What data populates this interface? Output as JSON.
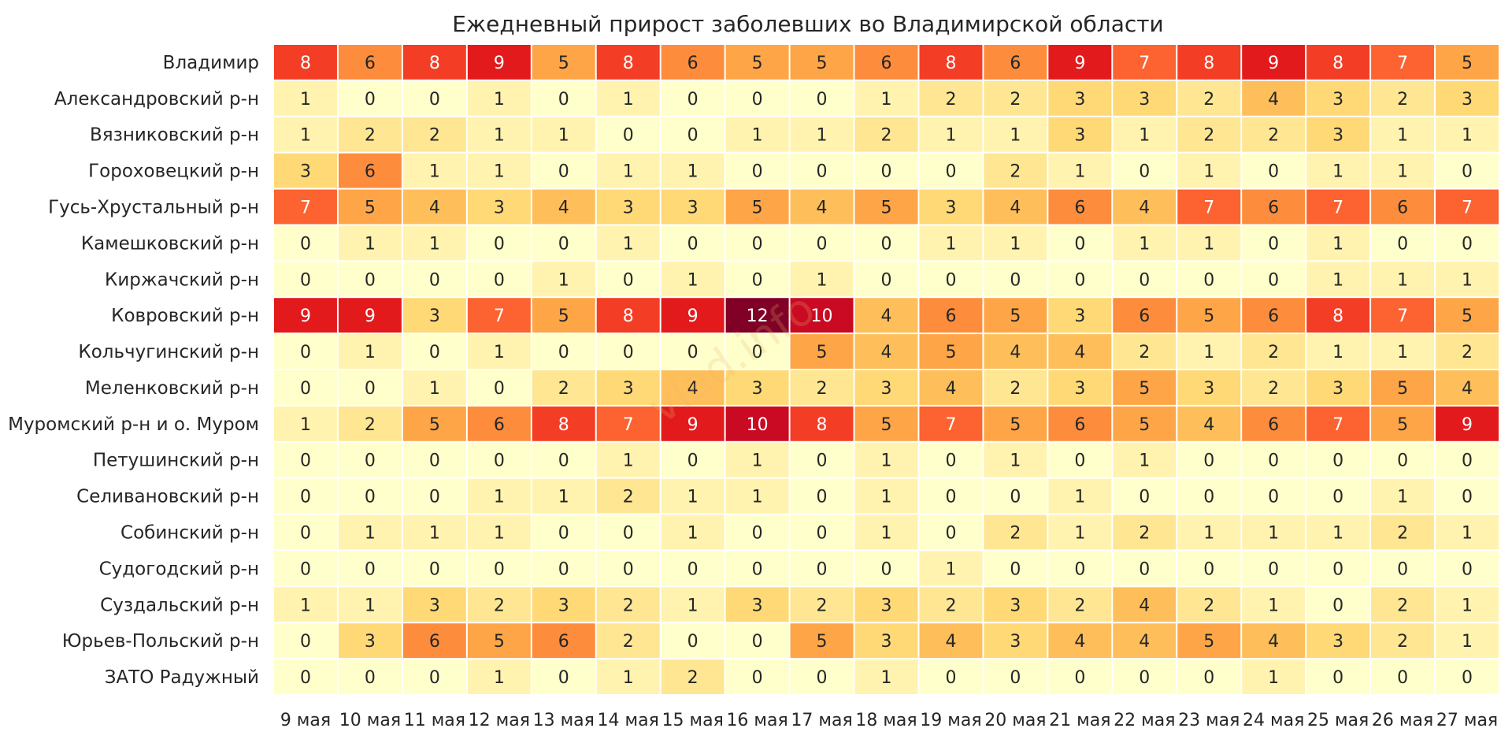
{
  "chart_data": {
    "type": "heatmap",
    "title": "Ежедневный прирост заболевших во Владимирской области",
    "watermark": "vlad.info",
    "colormap": [
      "#ffffcc",
      "#ffeda0",
      "#fed976",
      "#feb24c",
      "#fd8d3c",
      "#fc4e2a",
      "#e31a1c",
      "#bd0026",
      "#800026"
    ],
    "color_range": [
      0,
      12
    ],
    "x": [
      "9 мая",
      "10 мая",
      "11 мая",
      "12 мая",
      "13 мая",
      "14 мая",
      "15 мая",
      "16 мая",
      "17 мая",
      "18 мая",
      "19 мая",
      "20 мая",
      "21 мая",
      "22 мая",
      "23 мая",
      "24 мая",
      "25 мая",
      "26 мая",
      "27 мая"
    ],
    "y": [
      "Владимир",
      "Александровский р-н",
      "Вязниковский р-н",
      "Гороховецкий р-н",
      "Гусь-Хрустальный р-н",
      "Камешковский р-н",
      "Киржачский р-н",
      "Ковровский р-н",
      "Кольчугинский р-н",
      "Меленковский р-н",
      "Муромский р-н и о. Муром",
      "Петушинский р-н",
      "Селивановский р-н",
      "Собинский р-н",
      "Судогодский р-н",
      "Суздальский р-н",
      "Юрьев-Польский р-н",
      "ЗАТО Радужный"
    ],
    "values": [
      [
        8,
        6,
        8,
        9,
        5,
        8,
        6,
        5,
        5,
        6,
        8,
        6,
        9,
        7,
        8,
        9,
        8,
        7,
        5
      ],
      [
        1,
        0,
        0,
        1,
        0,
        1,
        0,
        0,
        0,
        1,
        2,
        2,
        3,
        3,
        2,
        4,
        3,
        2,
        3
      ],
      [
        1,
        2,
        2,
        1,
        1,
        0,
        0,
        1,
        1,
        2,
        1,
        1,
        3,
        1,
        2,
        2,
        3,
        1,
        1
      ],
      [
        3,
        6,
        1,
        1,
        0,
        1,
        1,
        0,
        0,
        0,
        0,
        2,
        1,
        0,
        1,
        0,
        1,
        1,
        0
      ],
      [
        7,
        5,
        4,
        3,
        4,
        3,
        3,
        5,
        4,
        5,
        3,
        4,
        6,
        4,
        7,
        6,
        7,
        6,
        7
      ],
      [
        0,
        1,
        1,
        0,
        0,
        1,
        0,
        0,
        0,
        0,
        1,
        1,
        0,
        1,
        1,
        0,
        1,
        0,
        0
      ],
      [
        0,
        0,
        0,
        0,
        1,
        0,
        1,
        0,
        1,
        0,
        0,
        0,
        0,
        0,
        0,
        0,
        1,
        1,
        1
      ],
      [
        9,
        9,
        3,
        7,
        5,
        8,
        9,
        12,
        10,
        4,
        6,
        5,
        3,
        6,
        5,
        6,
        8,
        7,
        5
      ],
      [
        0,
        1,
        0,
        1,
        0,
        0,
        0,
        0,
        5,
        4,
        5,
        4,
        4,
        2,
        1,
        2,
        1,
        1,
        2
      ],
      [
        0,
        0,
        1,
        0,
        2,
        3,
        4,
        3,
        2,
        3,
        4,
        2,
        3,
        5,
        3,
        2,
        3,
        5,
        4
      ],
      [
        1,
        2,
        5,
        6,
        8,
        7,
        9,
        10,
        8,
        5,
        7,
        5,
        6,
        5,
        4,
        6,
        7,
        5,
        9
      ],
      [
        0,
        0,
        0,
        0,
        0,
        1,
        0,
        1,
        0,
        1,
        0,
        1,
        0,
        1,
        0,
        0,
        0,
        0,
        0
      ],
      [
        0,
        0,
        0,
        1,
        1,
        2,
        1,
        1,
        0,
        1,
        0,
        0,
        1,
        0,
        0,
        0,
        0,
        1,
        0
      ],
      [
        0,
        1,
        1,
        1,
        0,
        0,
        1,
        0,
        0,
        1,
        0,
        2,
        1,
        2,
        1,
        1,
        1,
        2,
        1
      ],
      [
        0,
        0,
        0,
        0,
        0,
        0,
        0,
        0,
        0,
        0,
        1,
        0,
        0,
        0,
        0,
        0,
        0,
        0,
        0
      ],
      [
        1,
        1,
        3,
        2,
        3,
        2,
        1,
        3,
        2,
        3,
        2,
        3,
        2,
        4,
        2,
        1,
        0,
        2,
        1
      ],
      [
        0,
        3,
        6,
        5,
        6,
        2,
        0,
        0,
        5,
        3,
        4,
        3,
        4,
        4,
        5,
        4,
        3,
        2,
        1
      ],
      [
        0,
        0,
        0,
        1,
        0,
        1,
        2,
        0,
        0,
        1,
        0,
        0,
        0,
        0,
        0,
        1,
        0,
        0,
        0
      ]
    ],
    "annotated": true,
    "legend": "none",
    "grid": false
  }
}
